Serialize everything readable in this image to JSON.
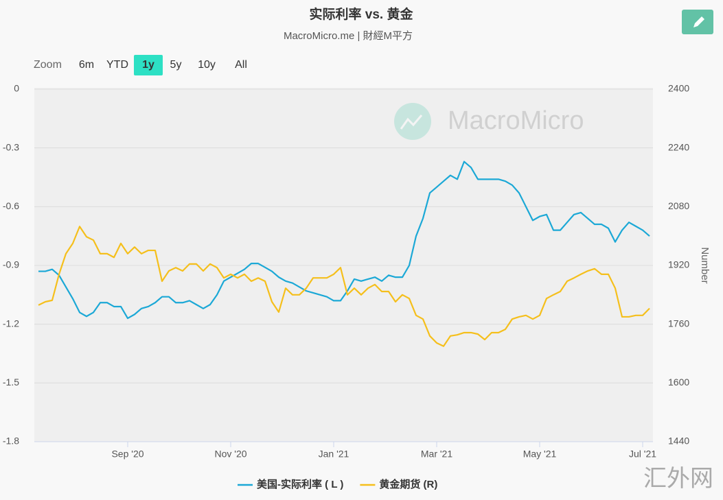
{
  "chart_data": {
    "type": "line",
    "title": "实际利率 vs. 黄金",
    "subtitle": "MacroMicro.me | 財經M平方",
    "zoom_label": "Zoom",
    "zoom_options": [
      "6m",
      "YTD",
      "1y",
      "5y",
      "10y",
      "All"
    ],
    "zoom_active": 2,
    "watermark": "MacroMicro",
    "corner_mark": "汇外网",
    "y2_label": "Number",
    "categories": [
      null,
      null,
      null,
      null,
      null,
      null,
      null,
      null,
      null,
      null,
      null,
      null,
      null,
      "Sep '20",
      null,
      null,
      null,
      null,
      null,
      null,
      null,
      null,
      null,
      null,
      null,
      null,
      null,
      null,
      "Nov '20",
      null,
      null,
      null,
      null,
      null,
      null,
      null,
      null,
      null,
      null,
      null,
      null,
      null,
      null,
      "Jan '21",
      null,
      null,
      null,
      null,
      null,
      null,
      null,
      null,
      null,
      null,
      null,
      null,
      null,
      null,
      "Mar '21",
      null,
      null,
      null,
      null,
      null,
      null,
      null,
      null,
      null,
      null,
      null,
      null,
      null,
      null,
      "May '21",
      null,
      null,
      null,
      null,
      null,
      null,
      null,
      null,
      null,
      null,
      null,
      null,
      null,
      null,
      "Jul '21",
      null
    ],
    "series": [
      {
        "name": "美国-实际利率 ( L )",
        "color": "#1ba8d6",
        "axis": "y",
        "values": [
          -0.93,
          -0.93,
          -0.92,
          -0.95,
          -1.01,
          -1.07,
          -1.14,
          -1.16,
          -1.14,
          -1.09,
          -1.09,
          -1.11,
          -1.11,
          -1.17,
          -1.15,
          -1.12,
          -1.11,
          -1.09,
          -1.06,
          -1.06,
          -1.09,
          -1.09,
          -1.08,
          -1.1,
          -1.12,
          -1.1,
          -1.05,
          -0.98,
          -0.96,
          -0.94,
          -0.92,
          -0.89,
          -0.89,
          -0.91,
          -0.93,
          -0.96,
          -0.98,
          -0.99,
          -1.01,
          -1.03,
          -1.04,
          -1.05,
          -1.06,
          -1.08,
          -1.08,
          -1.03,
          -0.97,
          -0.98,
          -0.97,
          -0.96,
          -0.98,
          -0.95,
          -0.96,
          -0.96,
          -0.9,
          -0.75,
          -0.66,
          -0.53,
          -0.5,
          -0.47,
          -0.44,
          -0.46,
          -0.37,
          -0.4,
          -0.46,
          -0.46,
          -0.46,
          -0.46,
          -0.47,
          -0.49,
          -0.53,
          -0.6,
          -0.67,
          -0.65,
          -0.64,
          -0.72,
          -0.72,
          -0.68,
          -0.64,
          -0.63,
          -0.66,
          -0.69,
          -0.69,
          -0.71,
          -0.78,
          -0.72,
          -0.68,
          -0.7,
          -0.72,
          -0.75
        ]
      },
      {
        "name": "黄金期货 (R)",
        "color": "#f5bf1b",
        "axis": "y2",
        "values": [
          1812,
          1821,
          1825,
          1896,
          1952,
          1980,
          2026,
          1998,
          1989,
          1952,
          1952,
          1942,
          1980,
          1952,
          1970,
          1952,
          1961,
          1961,
          1877,
          1905,
          1914,
          1905,
          1924,
          1924,
          1905,
          1924,
          1914,
          1886,
          1896,
          1886,
          1896,
          1877,
          1886,
          1877,
          1821,
          1793,
          1858,
          1840,
          1840,
          1858,
          1886,
          1886,
          1886,
          1896,
          1914,
          1840,
          1858,
          1840,
          1858,
          1868,
          1849,
          1849,
          1821,
          1840,
          1830,
          1784,
          1774,
          1728,
          1709,
          1700,
          1728,
          1731,
          1737,
          1737,
          1733,
          1718,
          1737,
          1737,
          1746,
          1774,
          1780,
          1784,
          1774,
          1784,
          1830,
          1840,
          1849,
          1877,
          1886,
          1896,
          1905,
          1911,
          1896,
          1896,
          1858,
          1780,
          1780,
          1784,
          1784,
          1803
        ]
      }
    ],
    "ylim": [
      -1.8,
      0
    ],
    "yticks": [
      0,
      -0.3,
      -0.6,
      -0.9,
      -1.2,
      -1.5,
      -1.8
    ],
    "y2lim": [
      1440,
      2400
    ],
    "y2ticks": [
      2400,
      2240,
      2080,
      1920,
      1760,
      1600,
      1440
    ],
    "grid": true
  }
}
